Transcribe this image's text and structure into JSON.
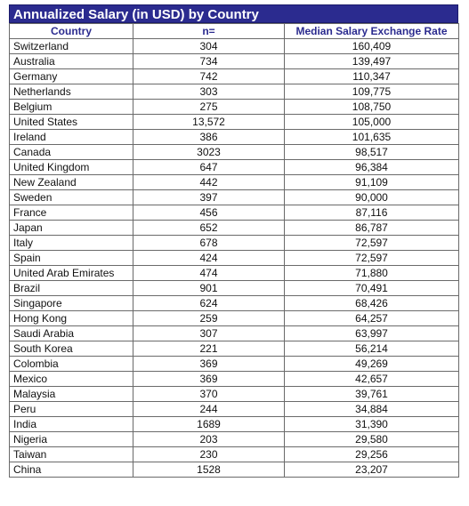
{
  "title": "Annualized Salary (in USD) by Country",
  "colors": {
    "title_bg": "#2b2b8f",
    "title_text": "#ffffff",
    "header_text": "#2b2b8f"
  },
  "table": {
    "headers": [
      "Country",
      "n=",
      "Median Salary Exchange Rate"
    ],
    "rows": [
      {
        "country": "Switzerland",
        "n": "304",
        "salary": "160,409"
      },
      {
        "country": "Australia",
        "n": "734",
        "salary": "139,497"
      },
      {
        "country": "Germany",
        "n": "742",
        "salary": "110,347"
      },
      {
        "country": "Netherlands",
        "n": "303",
        "salary": "109,775"
      },
      {
        "country": "Belgium",
        "n": "275",
        "salary": "108,750"
      },
      {
        "country": "United States",
        "n": "13,572",
        "salary": "105,000"
      },
      {
        "country": "Ireland",
        "n": "386",
        "salary": "101,635"
      },
      {
        "country": "Canada",
        "n": "3023",
        "salary": "98,517"
      },
      {
        "country": "United Kingdom",
        "n": "647",
        "salary": "96,384"
      },
      {
        "country": "New Zealand",
        "n": "442",
        "salary": "91,109"
      },
      {
        "country": "Sweden",
        "n": "397",
        "salary": "90,000"
      },
      {
        "country": "France",
        "n": "456",
        "salary": "87,116"
      },
      {
        "country": "Japan",
        "n": "652",
        "salary": "86,787"
      },
      {
        "country": "Italy",
        "n": "678",
        "salary": "72,597"
      },
      {
        "country": "Spain",
        "n": "424",
        "salary": "72,597"
      },
      {
        "country": "United Arab Emirates",
        "n": "474",
        "salary": "71,880"
      },
      {
        "country": "Brazil",
        "n": "901",
        "salary": "70,491"
      },
      {
        "country": "Singapore",
        "n": "624",
        "salary": "68,426"
      },
      {
        "country": "Hong Kong",
        "n": "259",
        "salary": "64,257"
      },
      {
        "country": "Saudi Arabia",
        "n": "307",
        "salary": "63,997"
      },
      {
        "country": "South Korea",
        "n": "221",
        "salary": "56,214"
      },
      {
        "country": "Colombia",
        "n": "369",
        "salary": "49,269"
      },
      {
        "country": "Mexico",
        "n": "369",
        "salary": "42,657"
      },
      {
        "country": "Malaysia",
        "n": "370",
        "salary": "39,761"
      },
      {
        "country": "Peru",
        "n": "244",
        "salary": "34,884"
      },
      {
        "country": "India",
        "n": "1689",
        "salary": "31,390"
      },
      {
        "country": "Nigeria",
        "n": "203",
        "salary": "29,580"
      },
      {
        "country": "Taiwan",
        "n": "230",
        "salary": "29,256"
      },
      {
        "country": "China",
        "n": "1528",
        "salary": "23,207"
      }
    ]
  }
}
